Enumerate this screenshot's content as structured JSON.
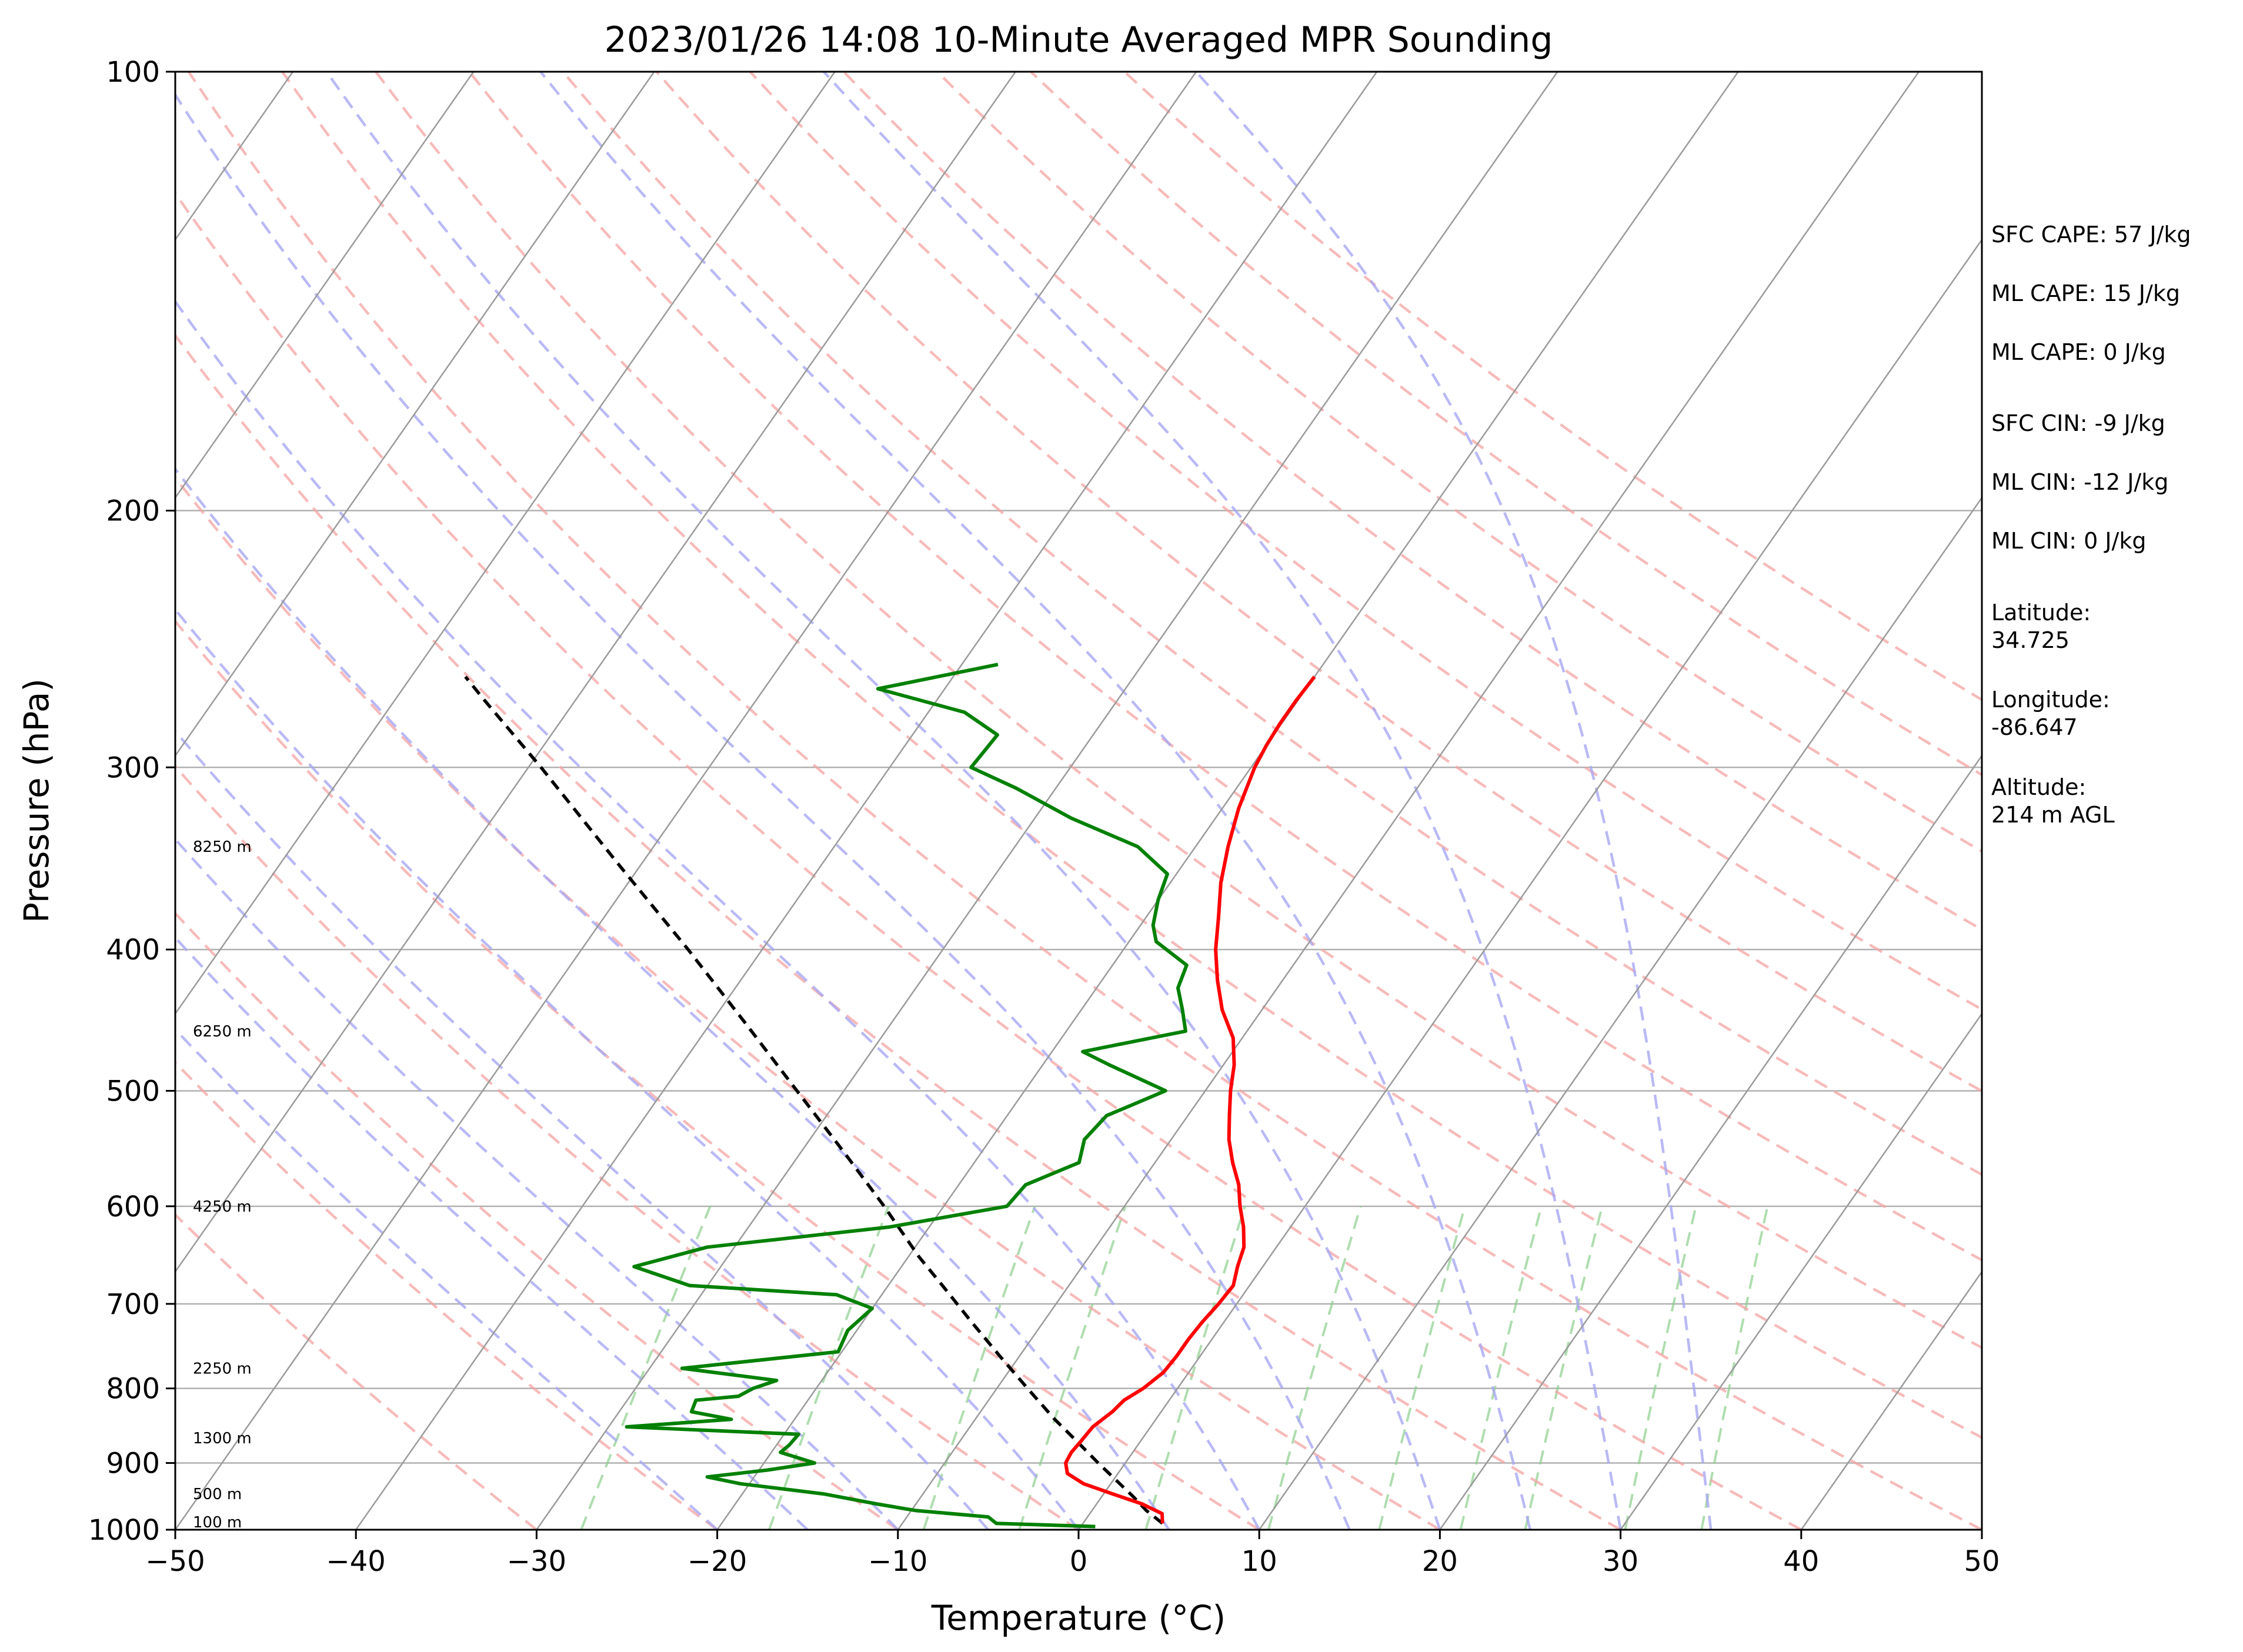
{
  "chart_data": {
    "type": "line",
    "title": "2023/01/26 14:08 10-Minute Averaged MPR Sounding",
    "xlabel": "Temperature (°C)",
    "ylabel": "Pressure (hPa)",
    "xlim": [
      -50,
      50
    ],
    "ylim": [
      1000,
      100
    ],
    "y_scale": "log",
    "x_ticks": [
      "−50",
      "−40",
      "−30",
      "−20",
      "−10",
      "0",
      "10",
      "20",
      "30",
      "40",
      "50"
    ],
    "y_ticks": [
      "1000",
      "900",
      "800",
      "700",
      "600",
      "500",
      "400",
      "300",
      "200",
      "100"
    ],
    "grid": true,
    "series": [
      {
        "color": "#ff0000",
        "pressure": [
          990,
          975,
          960,
          945,
          930,
          915,
          900,
          885,
          870,
          850,
          830,
          815,
          800,
          780,
          760,
          740,
          720,
          700,
          680,
          660,
          640,
          620,
          600,
          580,
          560,
          540,
          520,
          500,
          480,
          460,
          440,
          420,
          400,
          380,
          360,
          340,
          320,
          300,
          290,
          280,
          270,
          260
        ],
        "temperature": [
          4.4,
          4.0,
          2.5,
          0.5,
          -1.5,
          -2.8,
          -3.3,
          -3.4,
          -3.3,
          -3.2,
          -2.7,
          -2.5,
          -1.9,
          -1.4,
          -1.3,
          -1.3,
          -1.2,
          -1.0,
          -0.9,
          -1.4,
          -1.8,
          -2.6,
          -3.6,
          -4.5,
          -5.7,
          -6.8,
          -7.7,
          -8.6,
          -9.4,
          -10.5,
          -12.2,
          -13.6,
          -14.9,
          -16.0,
          -17.2,
          -18.2,
          -19.1,
          -19.8,
          -20.0,
          -20.1,
          -20.1,
          -20.0
        ]
      },
      {
        "color": "#008000",
        "pressure": [
          995,
          990,
          980,
          970,
          960,
          945,
          930,
          920,
          910,
          900,
          885,
          875,
          860,
          850,
          840,
          830,
          815,
          810,
          800,
          790,
          775,
          755,
          730,
          705,
          690,
          680,
          660,
          640,
          620,
          600,
          580,
          560,
          540,
          520,
          500,
          480,
          470,
          455,
          440,
          425,
          410,
          395,
          385,
          370,
          355,
          340,
          325,
          310,
          300,
          285,
          275,
          265,
          255
        ],
        "dewpoint": [
          0.8,
          -4.8,
          -5.5,
          -9.8,
          -12.2,
          -15.5,
          -20.5,
          -22.6,
          -19.5,
          -17.2,
          -19.5,
          -19.3,
          -19.2,
          -29.0,
          -23.5,
          -26.0,
          -26.2,
          -24.0,
          -23.5,
          -22.5,
          -28.2,
          -20.2,
          -20.5,
          -20.0,
          -22.5,
          -31.0,
          -34.8,
          -31.5,
          -22.2,
          -16.5,
          -16.3,
          -14.2,
          -14.8,
          -14.5,
          -12.2,
          -16.3,
          -18.3,
          -13.4,
          -14.4,
          -15.5,
          -15.9,
          -18.5,
          -19.3,
          -20.0,
          -20.5,
          -23.2,
          -28.0,
          -32.2,
          -35.5,
          -35.3,
          -38.0,
          -43.7,
          -38.0
        ]
      },
      {
        "color": "#000000",
        "pressure": [
          990,
          970,
          950,
          930,
          900,
          870,
          840,
          800,
          760,
          720,
          680,
          650,
          600,
          550,
          500,
          450,
          400,
          350,
          300,
          270,
          260
        ],
        "temperature": [
          4.4,
          3.0,
          1.8,
          0.5,
          -1.5,
          -3.5,
          -5.6,
          -8.3,
          -11.1,
          -14.0,
          -17.0,
          -19.4,
          -23.3,
          -27.7,
          -32.6,
          -38.0,
          -44.1,
          -51.2,
          -59.3,
          -65.0,
          -67.0
        ]
      }
    ],
    "height_labels": [
      "100 m",
      "500 m",
      "1300 m",
      "2250 m",
      "4250 m",
      "6250 m",
      "8250 m"
    ],
    "annotations": [
      "SFC CAPE: 57 J/kg",
      "ML CAPE: 15 J/kg",
      "ML CAPE: 0 J/kg",
      "SFC CIN: -9 J/kg",
      "ML CIN: -12 J/kg",
      "ML CIN: 0 J/kg",
      "Latitude:",
      "34.725",
      "Longitude:",
      "-86.647",
      "Altitude:",
      "214 m AGL"
    ]
  }
}
